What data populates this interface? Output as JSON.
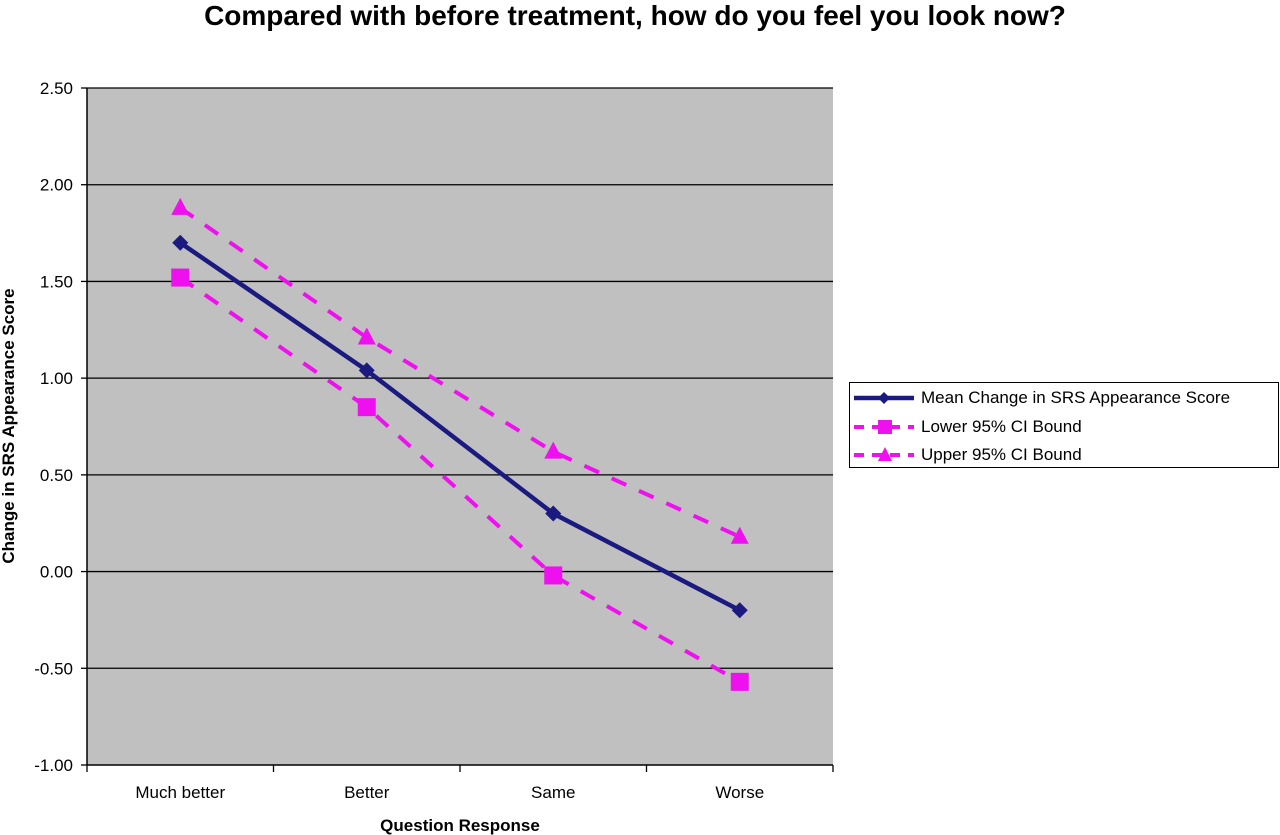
{
  "chart_data": {
    "type": "line",
    "title": "Compared with before treatment, how do you feel you look now?",
    "xlabel": "Question Response",
    "ylabel": "Change in SRS Appearance Score",
    "categories": [
      "Much better",
      "Better",
      "Same",
      "Worse"
    ],
    "ylim": [
      -1.0,
      2.5
    ],
    "yticks": [
      "-1.00",
      "-0.50",
      "0.00",
      "0.50",
      "1.00",
      "1.50",
      "2.00",
      "2.50"
    ],
    "grid": true,
    "legend_position": "right",
    "series": [
      {
        "name": "Mean Change in SRS Appearance Score",
        "values": [
          1.7,
          1.04,
          0.3,
          -0.2
        ],
        "color": "#1a1a80",
        "marker": "diamond",
        "line": "solid"
      },
      {
        "name": "Lower 95% CI Bound",
        "values": [
          1.52,
          0.85,
          -0.02,
          -0.57
        ],
        "color": "#ee10ee",
        "marker": "square",
        "line": "dashed"
      },
      {
        "name": "Upper 95% CI Bound",
        "values": [
          1.88,
          1.21,
          0.62,
          0.18
        ],
        "color": "#ee10ee",
        "marker": "triangle",
        "line": "dashed"
      }
    ],
    "plot_background": "#c0c0c0"
  }
}
